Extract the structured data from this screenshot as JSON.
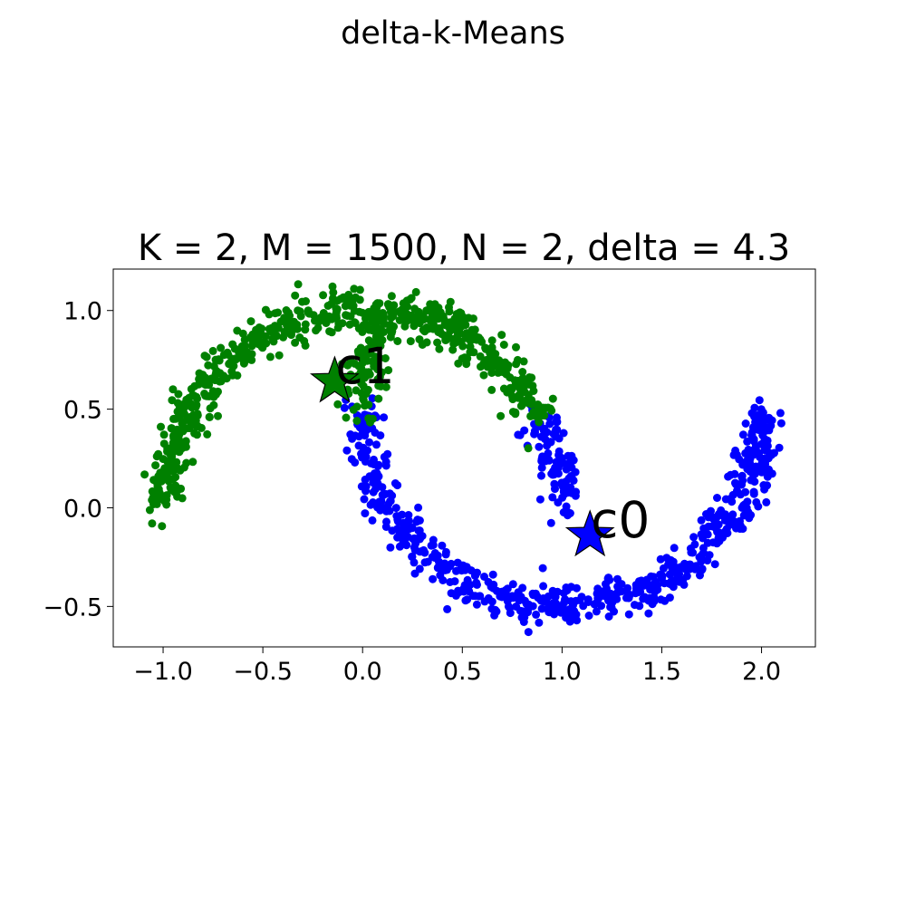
{
  "figure": {
    "suptitle": "delta-k-Means"
  },
  "chart_data": {
    "type": "scatter",
    "title": "K = 2, M = 1500, N = 2, delta = 4.3",
    "xlabel": "",
    "ylabel": "",
    "xlim": [
      -1.25,
      2.27
    ],
    "ylim": [
      -0.705,
      1.21
    ],
    "xticks": [
      -1.0,
      -0.5,
      0.0,
      0.5,
      1.0,
      1.5,
      2.0
    ],
    "xtick_labels": [
      "−1.0",
      "−0.5",
      "0.0",
      "0.5",
      "1.0",
      "1.5",
      "2.0"
    ],
    "yticks": [
      -0.5,
      0.0,
      0.5,
      1.0
    ],
    "ytick_labels": [
      "−0.5",
      "0.0",
      "0.5",
      "1.0"
    ],
    "grid": false,
    "legend": "none",
    "n_points_total": 1500,
    "series": [
      {
        "cluster": "c0",
        "color": "#0000ff",
        "shape": "two-moons lower moon plus inner end of upper moon",
        "segments": [
          {
            "kind": "arc",
            "cx": 1.0,
            "cy": 0.5,
            "r": 1.0,
            "theta_start_deg": 180,
            "theta_end_deg": 360,
            "count": 650
          },
          {
            "kind": "arc",
            "cx": 0.0,
            "cy": 0.0,
            "r": 1.0,
            "theta_start_deg": 0,
            "theta_end_deg": 27,
            "count": 100
          }
        ]
      },
      {
        "cluster": "c1",
        "color": "#008000",
        "shape": "two-moons upper moon plus inner end of lower moon",
        "segments": [
          {
            "kind": "arc",
            "cx": 0.0,
            "cy": 0.0,
            "r": 1.0,
            "theta_start_deg": 27,
            "theta_end_deg": 180,
            "count": 650
          },
          {
            "kind": "arc",
            "cx": 1.0,
            "cy": 0.5,
            "r": 1.0,
            "theta_start_deg": 155,
            "theta_end_deg": 180,
            "count": 100
          }
        ]
      }
    ],
    "centroids": [
      {
        "label": "c0",
        "x": 1.14,
        "y": -0.14,
        "color": "#0000ff",
        "marker": "star"
      },
      {
        "label": "c1",
        "x": -0.14,
        "y": 0.64,
        "color": "#008000",
        "marker": "star"
      }
    ]
  }
}
